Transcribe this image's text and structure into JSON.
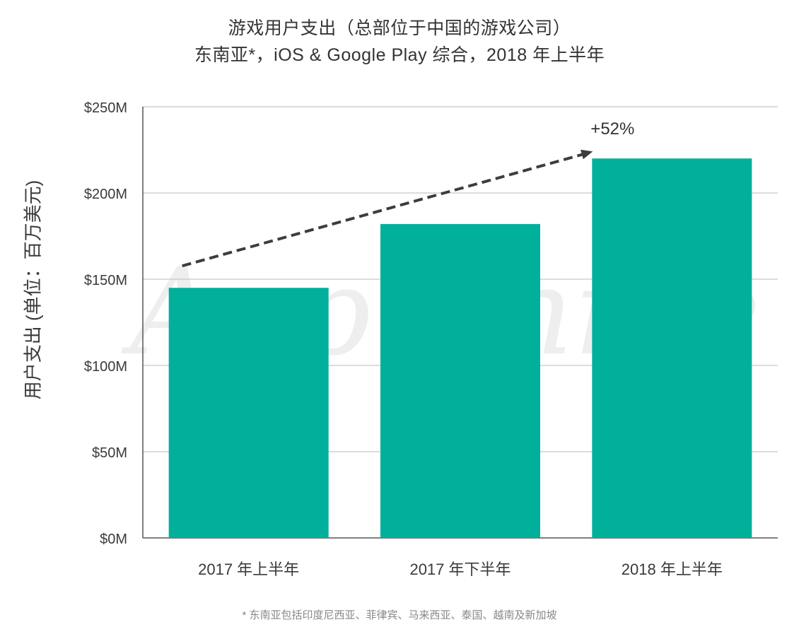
{
  "title": "游戏用户支出（总部位于中国的游戏公司）",
  "subtitle": "东南亚*，iOS & Google Play 综合，2018 年上半年",
  "footnote": "* 东南亚包括印度尼西亚、菲律宾、马来西亚、泰国、越南及新加坡",
  "watermark": "App Annie",
  "colors": {
    "bar": "#00b09b",
    "grid": "#c8c8c8",
    "axis": "#555555",
    "arrow": "#3d3d3d",
    "watermark": "#eeeeee"
  },
  "chart_data": {
    "type": "bar",
    "ylabel": "用户支出 (单位：百万美元)",
    "xlabel": "",
    "categories": [
      "2017 年上半年",
      "2017 年下半年",
      "2018 年上半年"
    ],
    "values": [
      145,
      182,
      220
    ],
    "ylim": [
      0,
      250
    ],
    "yticks": [
      0,
      50,
      100,
      150,
      200,
      250
    ],
    "ytick_labels": [
      "$0M",
      "$50M",
      "$100M",
      "$150M",
      "$200M",
      "$250M"
    ],
    "grid": true,
    "annotation": {
      "text": "+52%",
      "type": "dashed-arrow",
      "from_category": 0,
      "to_category": 2
    }
  }
}
